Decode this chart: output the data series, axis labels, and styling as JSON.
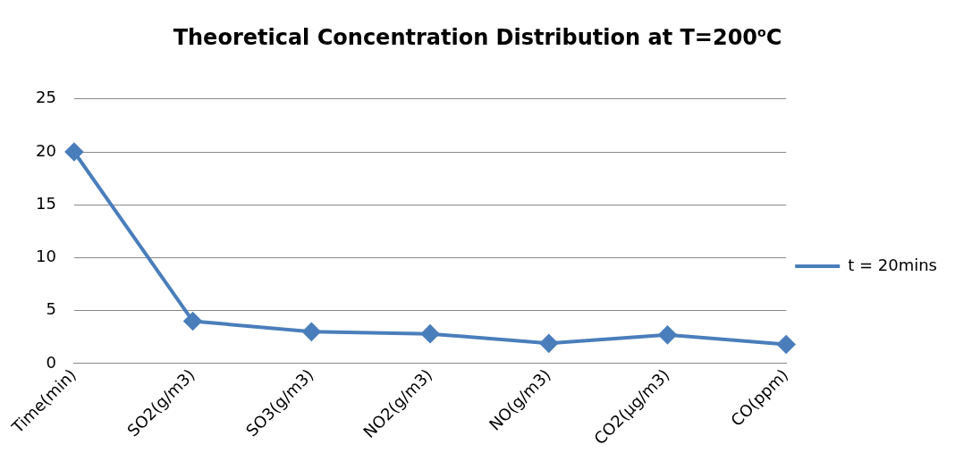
{
  "chart_data": {
    "type": "line",
    "title": "Theoretical Concentration Distribution at T=200$^{o}$C",
    "categories": [
      "Time(min)",
      "SO2(g/m3)",
      "SO3(g/m3)",
      "NO2(g/m3)",
      "NO(g/m3)",
      "CO2(µg/m3)",
      "CO(ppm)"
    ],
    "series": [
      {
        "name": "t = 20mins",
        "color": "#4a7ebb",
        "values": [
          20,
          4,
          3,
          2.8,
          1.9,
          2.7,
          1.8
        ]
      }
    ],
    "ylim": [
      0,
      25
    ],
    "yticks": [
      0,
      5,
      10,
      15,
      20,
      25
    ],
    "grid": "y",
    "legend": "right",
    "marker": "diamond"
  }
}
